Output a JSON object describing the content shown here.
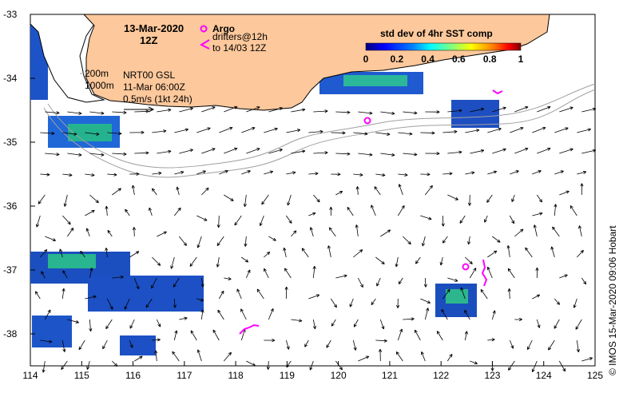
{
  "title": {
    "date": "13-Mar-2020",
    "hour": "12Z"
  },
  "legend": {
    "argo_label": "Argo",
    "drifter_line1": "drifters@12h",
    "drifter_line2": "to 14/03 12Z",
    "argo_color": "#ff00ff",
    "drifter_color": "#ff00ff"
  },
  "colorbar": {
    "title": "std dev of 4hr SST comp",
    "ticks": [
      "0",
      "0.2",
      "0.4",
      "0.6",
      "0.8",
      "1"
    ],
    "colors": [
      "#00007f",
      "#0000ff",
      "#007fff",
      "#00ffff",
      "#7fff7f",
      "#ffff00",
      "#ff7f00",
      "#ff0000",
      "#7f0000"
    ]
  },
  "info": {
    "contour1": "200m",
    "contour2": "1000m",
    "product": "NRT00 GSL",
    "time": "11-Mar 06:00Z",
    "scale": "0.5m/s (1kt 24h)"
  },
  "axes": {
    "x_ticks": [
      "114",
      "115",
      "116",
      "117",
      "118",
      "119",
      "120",
      "121",
      "122",
      "123",
      "124",
      "125"
    ],
    "y_ticks": [
      "-33",
      "-34",
      "-35",
      "-36",
      "-37",
      "-38"
    ],
    "xlim": [
      114,
      125
    ],
    "ylim": [
      -38.5,
      -33
    ]
  },
  "credit": "© IMOS 15-Mar-2020 09:06 Hobart",
  "colors": {
    "land": "#fdc89b",
    "coast": "#000000",
    "isobath": "#a0a0a0"
  }
}
